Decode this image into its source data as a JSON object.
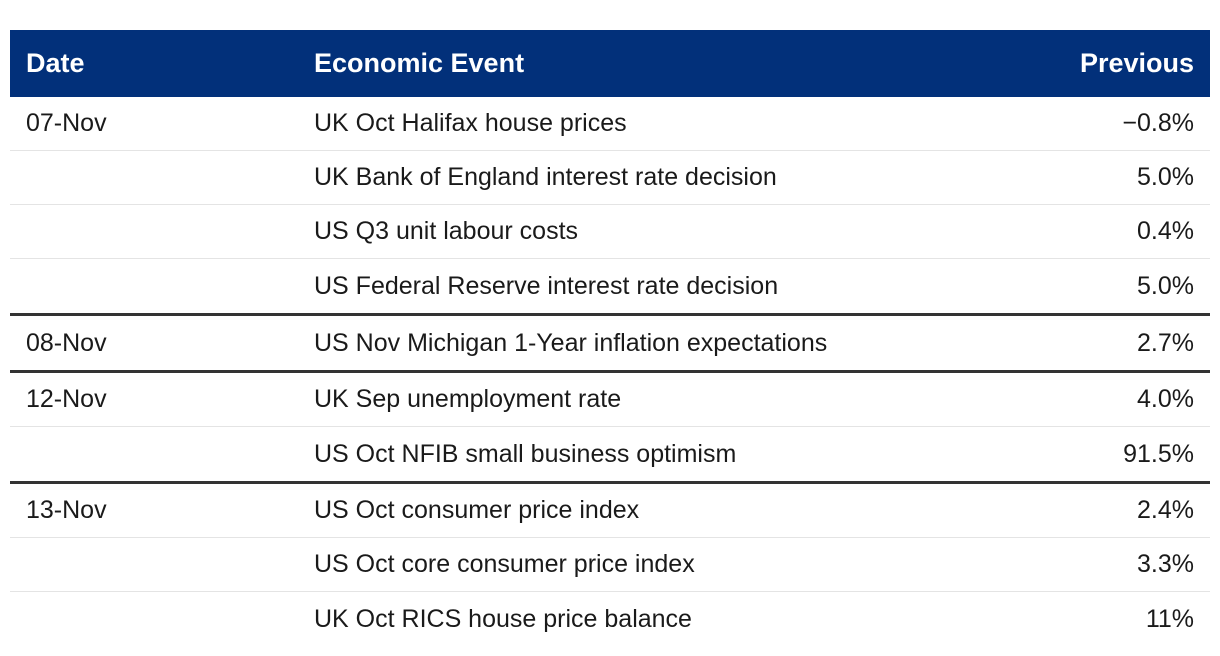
{
  "table": {
    "headers": {
      "date": "Date",
      "event": "Economic Event",
      "previous": "Previous"
    },
    "groups": [
      {
        "date": "07-Nov",
        "rows": [
          {
            "event": "UK Oct Halifax house prices",
            "previous": "−0.8%"
          },
          {
            "event": "UK Bank of England interest rate decision",
            "previous": "5.0%"
          },
          {
            "event": "US Q3 unit labour costs",
            "previous": "0.4%"
          },
          {
            "event": "US Federal Reserve interest rate decision",
            "previous": "5.0%"
          }
        ]
      },
      {
        "date": "08-Nov",
        "rows": [
          {
            "event": "US Nov Michigan 1-Year inflation expectations",
            "previous": "2.7%"
          }
        ]
      },
      {
        "date": "12-Nov",
        "rows": [
          {
            "event": "UK Sep unemployment rate",
            "previous": "4.0%"
          },
          {
            "event": "US Oct NFIB small business optimism",
            "previous": "91.5%"
          }
        ]
      },
      {
        "date": "13-Nov",
        "rows": [
          {
            "event": "US Oct consumer price index",
            "previous": "2.4%"
          },
          {
            "event": "US Oct core consumer price index",
            "previous": "3.3%"
          },
          {
            "event": "UK Oct RICS house price balance",
            "previous": "11%"
          }
        ]
      }
    ]
  },
  "colors": {
    "header_bg": "#02307a",
    "header_text": "#ffffff",
    "group_divider": "#333333",
    "row_divider": "#e4e4e4"
  }
}
